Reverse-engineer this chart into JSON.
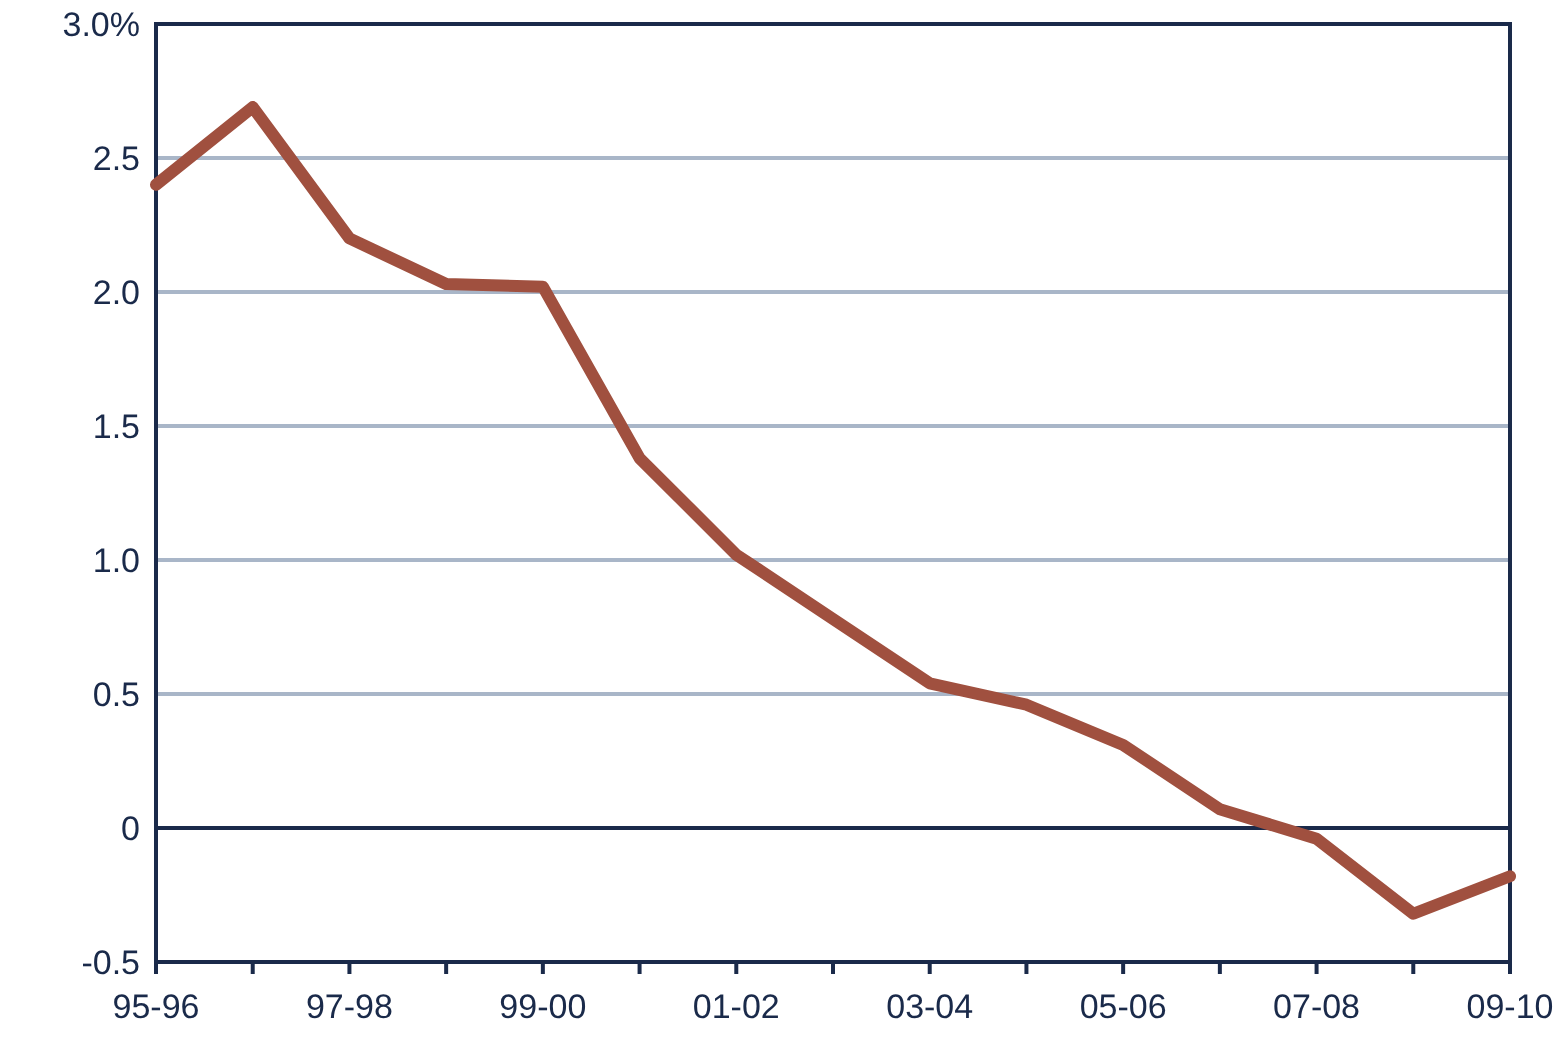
{
  "chart_data": {
    "type": "line",
    "categories": [
      "95-96",
      null,
      "97-98",
      null,
      "99-00",
      null,
      "01-02",
      null,
      "03-04",
      null,
      "05-06",
      null,
      "07-08",
      null,
      "09-10"
    ],
    "series": [
      {
        "color": "#a0503f",
        "values": [
          2.4,
          2.69,
          2.2,
          2.03,
          2.02,
          1.38,
          1.02,
          0.78,
          0.54,
          0.46,
          0.31,
          0.07,
          -0.04,
          -0.32,
          -0.18
        ]
      }
    ],
    "ylim": [
      -0.5,
      3.0
    ],
    "yticks": [
      -0.5,
      0,
      0.5,
      {
        "value": 1,
        "label": "1.0"
      },
      1.5,
      {
        "value": 2,
        "label": "2.0"
      },
      2.5,
      {
        "value": 3,
        "label": "3.0%"
      }
    ],
    "grid": "y",
    "marker": "none",
    "line_style": "solid",
    "ref_lines": [
      {
        "axis": "y",
        "value": 0,
        "color": "#1a2a4a"
      }
    ]
  }
}
